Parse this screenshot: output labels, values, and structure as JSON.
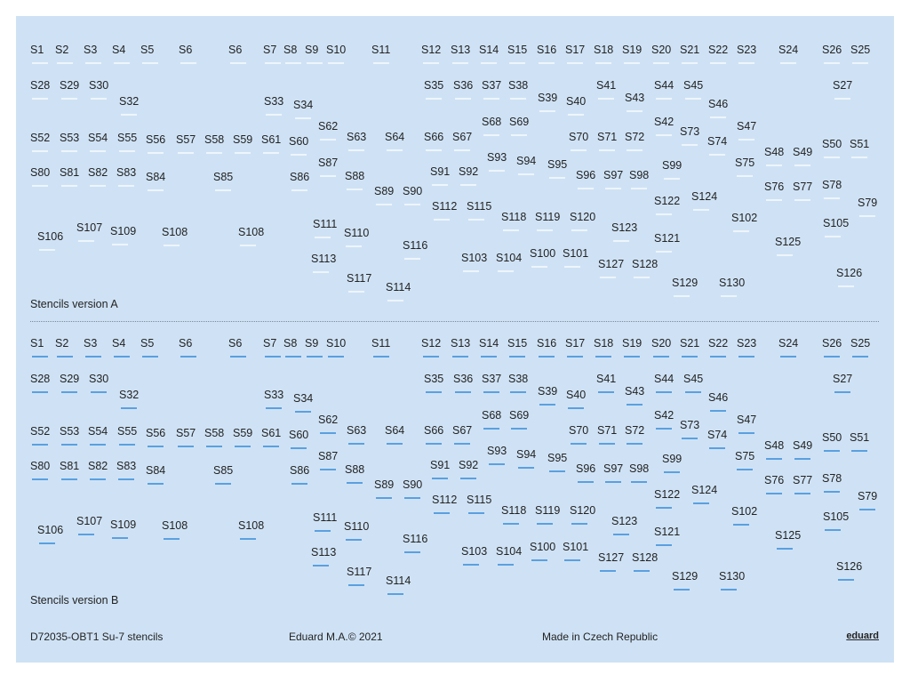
{
  "sections": [
    {
      "title": "Stencils version A",
      "labels": [
        "S1",
        "S2",
        "S3",
        "S4",
        "S5",
        "S6",
        "S6",
        "S7",
        "S8",
        "S9",
        "S10",
        "S11",
        "S12",
        "S13",
        "S14",
        "S15",
        "S16",
        "S17",
        "S18",
        "S19",
        "S20",
        "S21",
        "S22",
        "S23",
        "S24",
        "S26",
        "S25",
        "S28",
        "S29",
        "S30",
        "S32",
        "S33",
        "S34",
        "S35",
        "S36",
        "S37",
        "S38",
        "S39",
        "S40",
        "S41",
        "S43",
        "S44",
        "S45",
        "S46",
        "S27",
        "S52",
        "S53",
        "S54",
        "S55",
        "S56",
        "S57",
        "S58",
        "S59",
        "S61",
        "S60",
        "S62",
        "S63",
        "S64",
        "S66",
        "S67",
        "S68",
        "S69",
        "S70",
        "S71",
        "S72",
        "S42",
        "S73",
        "S74",
        "S47",
        "S50",
        "S51",
        "S48",
        "S49",
        "S80",
        "S81",
        "S82",
        "S83",
        "S84",
        "S85",
        "S86",
        "S87",
        "S88",
        "S89",
        "S90",
        "S91",
        "S92",
        "S93",
        "S94",
        "S95",
        "S96",
        "S97",
        "S98",
        "S99",
        "S75",
        "S76",
        "S77",
        "S78",
        "S79",
        "S112",
        "S115",
        "S118",
        "S119",
        "S120",
        "S122",
        "S124",
        "S102",
        "S105",
        "S106",
        "S107",
        "S109",
        "S108",
        "S108",
        "S111",
        "S110",
        "S116",
        "S123",
        "S121",
        "S125",
        "S113",
        "S103",
        "S104",
        "S100",
        "S101",
        "S127",
        "S128",
        "S117",
        "S114",
        "S129",
        "S130",
        "S126"
      ]
    },
    {
      "title": "Stencils version B",
      "labels": [
        "S1",
        "S2",
        "S3",
        "S4",
        "S5",
        "S6",
        "S6",
        "S7",
        "S8",
        "S9",
        "S10",
        "S11",
        "S12",
        "S13",
        "S14",
        "S15",
        "S16",
        "S17",
        "S18",
        "S19",
        "S20",
        "S21",
        "S22",
        "S23",
        "S24",
        "S26",
        "S25",
        "S28",
        "S29",
        "S30",
        "S32",
        "S33",
        "S34",
        "S35",
        "S36",
        "S37",
        "S38",
        "S39",
        "S40",
        "S41",
        "S43",
        "S44",
        "S45",
        "S46",
        "S27",
        "S52",
        "S53",
        "S54",
        "S55",
        "S56",
        "S57",
        "S58",
        "S59",
        "S61",
        "S60",
        "S62",
        "S63",
        "S64",
        "S66",
        "S67",
        "S68",
        "S69",
        "S70",
        "S71",
        "S72",
        "S42",
        "S73",
        "S74",
        "S47",
        "S50",
        "S51",
        "S48",
        "S49",
        "S80",
        "S81",
        "S82",
        "S83",
        "S84",
        "S85",
        "S86",
        "S87",
        "S88",
        "S89",
        "S90",
        "S91",
        "S92",
        "S93",
        "S94",
        "S95",
        "S96",
        "S97",
        "S98",
        "S99",
        "S75",
        "S76",
        "S77",
        "S78",
        "S79",
        "S112",
        "S115",
        "S118",
        "S119",
        "S120",
        "S122",
        "S124",
        "S102",
        "S105",
        "S106",
        "S107",
        "S109",
        "S108",
        "S108",
        "S111",
        "S110",
        "S116",
        "S123",
        "S121",
        "S125",
        "S113",
        "S103",
        "S104",
        "S100",
        "S101",
        "S127",
        "S128",
        "S117",
        "S114",
        "S129",
        "S130",
        "S126"
      ]
    }
  ],
  "footer": {
    "code": "D72035-OBT1 Su-7 stencils",
    "copyright": "Eduard M.A.© 2021",
    "origin": "Made in Czech Republic",
    "brand": "eduard"
  }
}
